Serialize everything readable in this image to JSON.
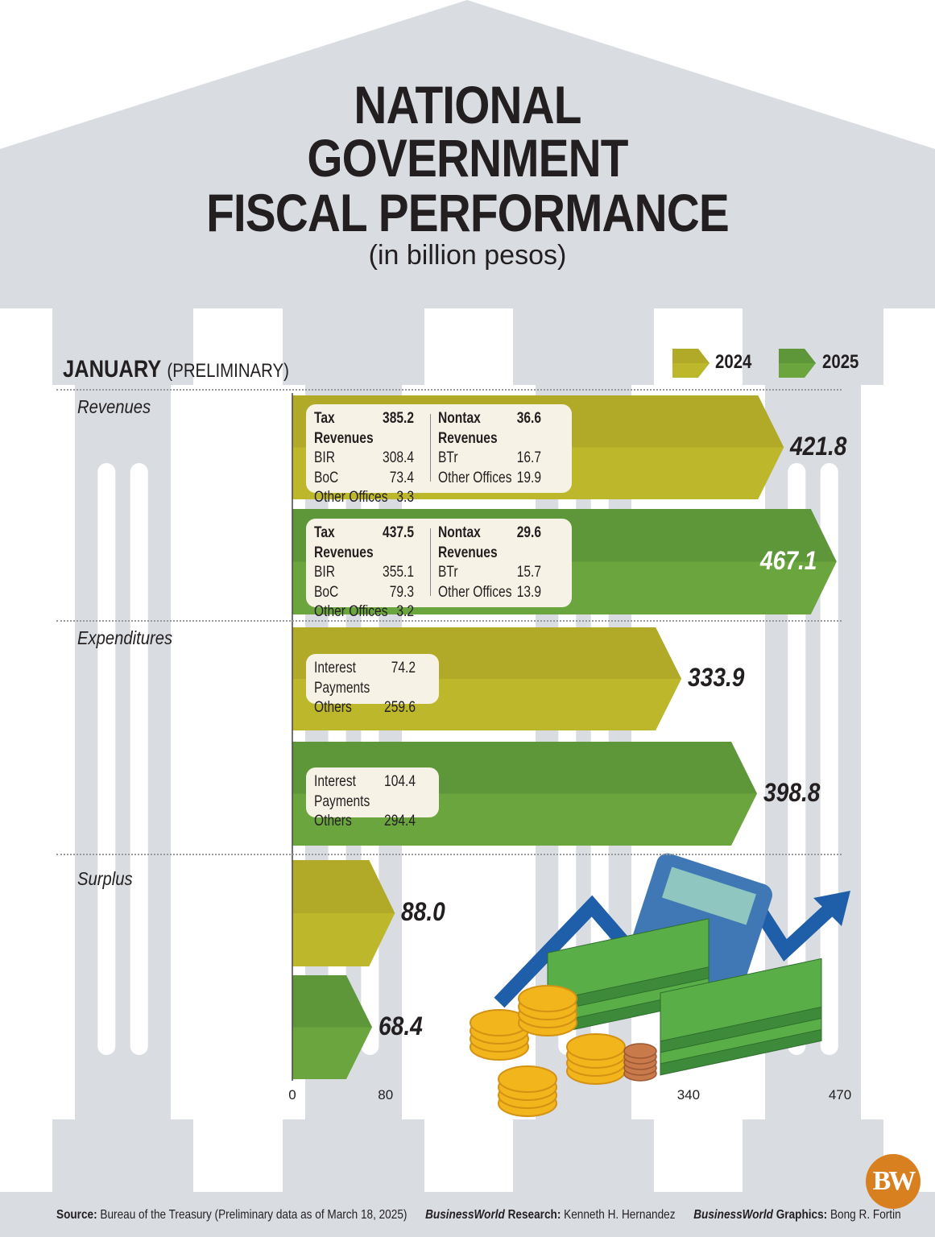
{
  "title": [
    "NATIONAL",
    "GOVERNMENT",
    "FISCAL PERFORMANCE"
  ],
  "subtitle": "(in billion pesos)",
  "period": {
    "month": "JANUARY",
    "note": "(PRELIMINARY)"
  },
  "colors": {
    "y2024": "#bdb82b",
    "y2024_dark": "#b0aa28",
    "y2025": "#6aa53e",
    "y2025_dark": "#5d973a",
    "background": "#d9dde2"
  },
  "chart_data": {
    "type": "bar",
    "orientation": "horizontal",
    "categories": [
      "Revenues",
      "Expenditures",
      "Surplus"
    ],
    "series": [
      {
        "name": "2024",
        "values": [
          421.8,
          333.9,
          88.0
        ],
        "labels": [
          "421.8",
          "333.9",
          "88.0"
        ]
      },
      {
        "name": "2025",
        "values": [
          467.1,
          398.8,
          68.4
        ],
        "labels": [
          "467.1",
          "398.8",
          "68.4"
        ]
      }
    ],
    "xticks": [
      "0",
      "80",
      "340",
      "470"
    ],
    "xtick_values": [
      0,
      80,
      340,
      470
    ],
    "xlim": [
      0,
      470
    ],
    "legend": "top-right",
    "breakdowns": {
      "revenues_2024": {
        "tax": [
          [
            "Tax Revenues",
            "385.2"
          ],
          [
            "BIR",
            "308.4"
          ],
          [
            "BoC",
            "73.4"
          ],
          [
            "Other Offices",
            "3.3"
          ]
        ],
        "nontax": [
          [
            "Nontax Revenues",
            "36.6"
          ],
          [
            "BTr",
            "16.7"
          ],
          [
            "Other Offices",
            "19.9"
          ]
        ]
      },
      "revenues_2025": {
        "tax": [
          [
            "Tax Revenues",
            "437.5"
          ],
          [
            "BIR",
            "355.1"
          ],
          [
            "BoC",
            "79.3"
          ],
          [
            "Other Offices",
            "3.2"
          ]
        ],
        "nontax": [
          [
            "Nontax Revenues",
            "29.6"
          ],
          [
            "BTr",
            "15.7"
          ],
          [
            "Other Offices",
            "13.9"
          ]
        ]
      },
      "expenditures_2024": [
        [
          "Interest Payments",
          "74.2"
        ],
        [
          "Others",
          "259.6"
        ]
      ],
      "expenditures_2025": [
        [
          "Interest Payments",
          "104.4"
        ],
        [
          "Others",
          "294.4"
        ]
      ]
    }
  },
  "footer": {
    "source_label": "Source:",
    "source": " Bureau of the Treasury (Preliminary data as of March 18, 2025)",
    "brand": "BusinessWorld",
    "research_label": " Research:",
    "research": " Kenneth H. Hernandez",
    "graphics_label": " Graphics:",
    "graphics": " Bong R. Fortin"
  },
  "logo": "BW"
}
